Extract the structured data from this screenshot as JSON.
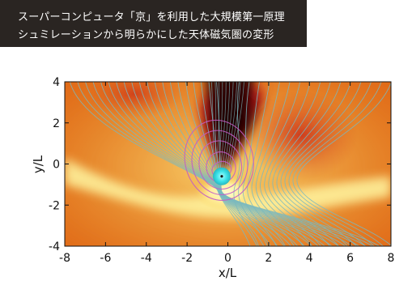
{
  "title": {
    "line1": "スーパーコンピュータ「京」を利用した大規模第一原理",
    "line2": "シュミレーションから明らかにした天体磁気圏の変形"
  },
  "chart_data": {
    "type": "heatmap",
    "xlabel": "x/L",
    "ylabel": "y/L",
    "xlim": [
      -8,
      8
    ],
    "ylim": [
      -4,
      4
    ],
    "x_ticks": [
      -8,
      -6,
      -4,
      -2,
      0,
      2,
      4,
      6,
      8
    ],
    "y_ticks": [
      -4,
      -2,
      0,
      2,
      4
    ],
    "x_tick_labels": [
      "-8",
      "-6",
      "-4",
      "-2",
      "0",
      "2",
      "4",
      "6",
      "8"
    ],
    "y_tick_labels": [
      "-4",
      "-2",
      "0",
      "2",
      "4"
    ],
    "body_center": [
      -0.3,
      -0.6
    ],
    "colors": {
      "background": "#e06a18",
      "bright_band": "#fff6a0",
      "dark_wake": "#1a0404",
      "field_lines": "#79b9bf",
      "closed_loops": "#c25cc6",
      "body": "#38e0e6"
    }
  }
}
